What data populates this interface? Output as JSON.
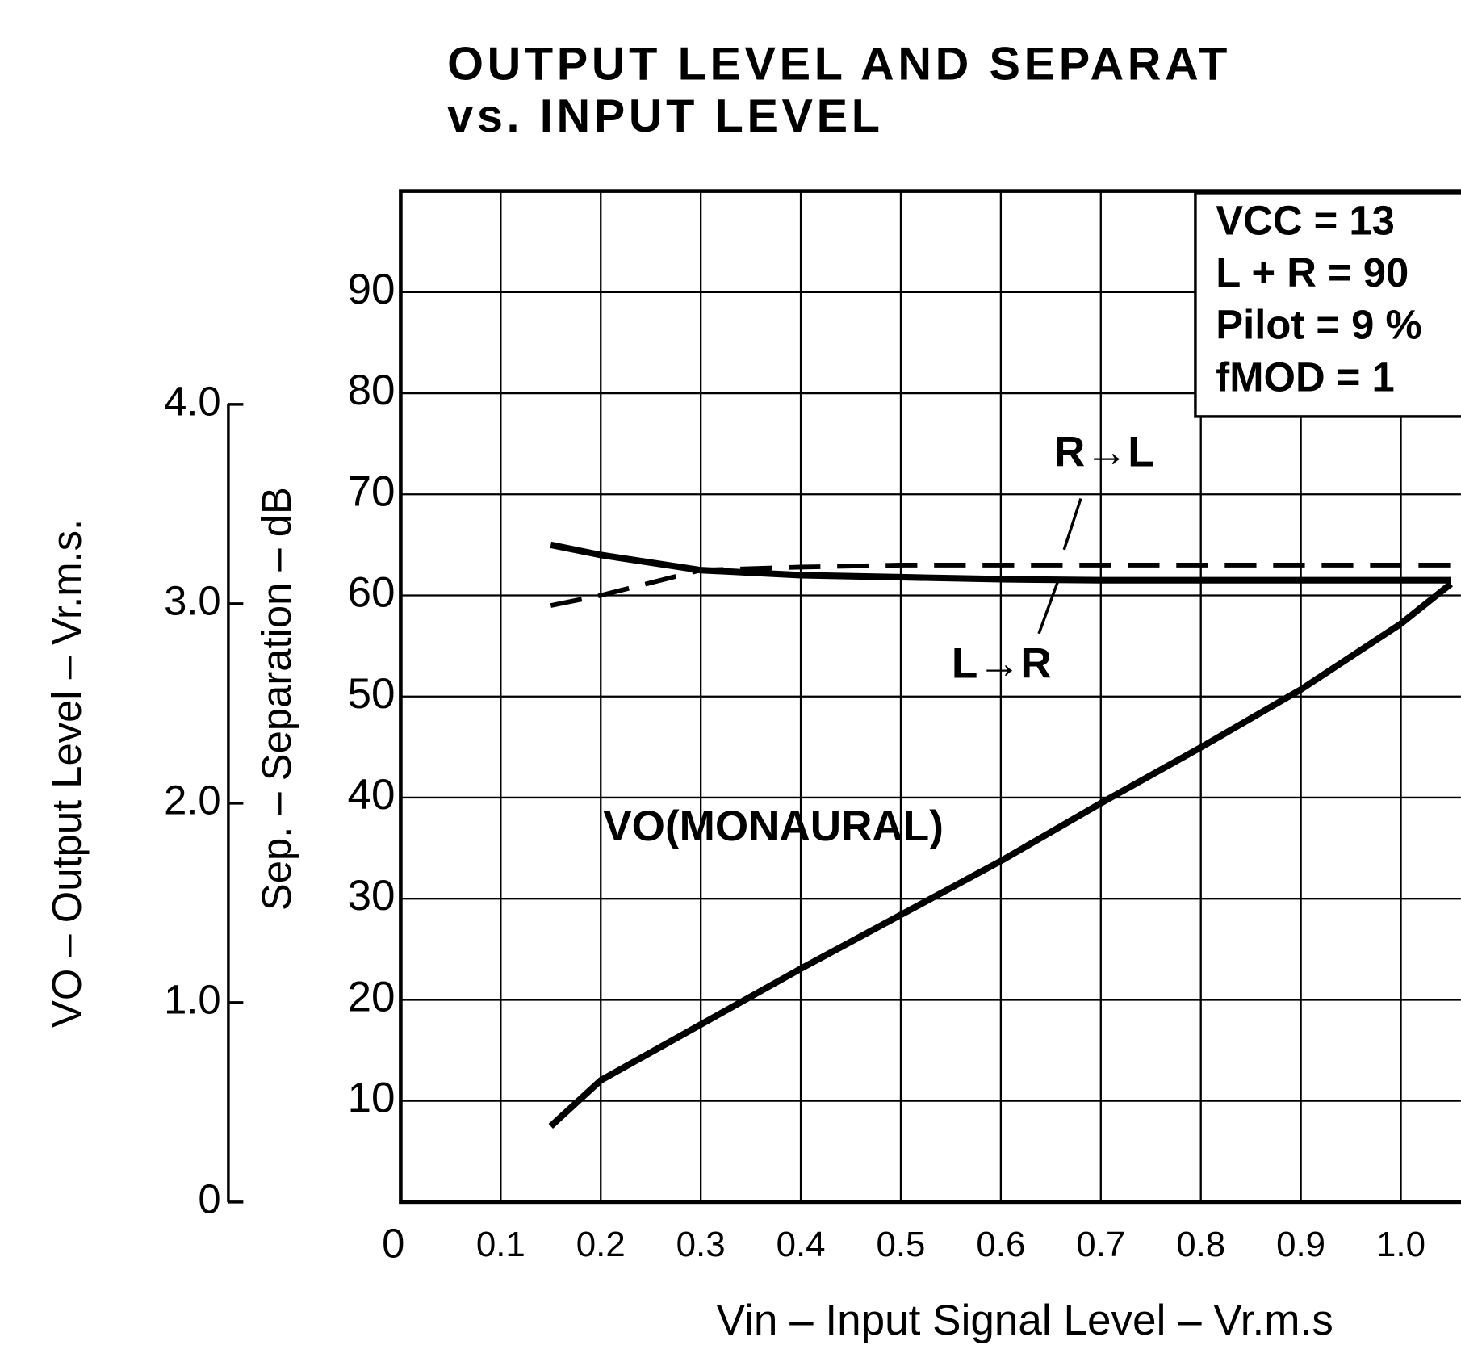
{
  "chart_data": {
    "type": "line",
    "title": [
      "OUTPUT LEVEL AND SEPARAT",
      "vs. INPUT LEVEL"
    ],
    "xlabel": "Vin – Input Signal Level – Vr.m.s",
    "ylabel": "Sep. – Separation – dB",
    "y2label": "VO – Output Level – Vr.m.s.",
    "x": [
      0.15,
      0.2,
      0.3,
      0.4,
      0.5,
      0.6,
      0.7,
      0.8,
      0.9,
      1.0,
      1.05
    ],
    "series": [
      {
        "name": "L→R",
        "color": "#000000",
        "style": "solid",
        "values": [
          65,
          64,
          62.5,
          62,
          61.8,
          61.6,
          61.5,
          61.5,
          61.5,
          61.5,
          61.5
        ]
      },
      {
        "name": "R→L",
        "color": "#000000",
        "style": "dashed",
        "values": [
          59,
          60,
          62.5,
          62.8,
          63,
          63,
          63,
          63,
          63,
          63,
          63
        ]
      },
      {
        "name": "VO(MONAURAL)",
        "color": "#000000",
        "style": "solid",
        "axis": "y2",
        "values": [
          0.38,
          0.61,
          0.89,
          1.17,
          1.44,
          1.71,
          2.0,
          2.28,
          2.57,
          2.9,
          3.1
        ]
      }
    ],
    "annotations": [
      "VCC = 13",
      "L + R = 90",
      "Pilot = 9 %",
      "fMOD = 1"
    ],
    "xlim": [
      0,
      1.06
    ],
    "xticks": [
      0,
      0.1,
      0.2,
      0.3,
      0.4,
      0.5,
      0.6,
      0.7,
      0.8,
      0.9,
      {
        "value": 1,
        "label": "1.0"
      }
    ],
    "ylim": [
      0,
      100
    ],
    "yticks": [
      10,
      20,
      30,
      40,
      50,
      60,
      70,
      80,
      90
    ],
    "y2lim": [
      0,
      5.07
    ],
    "y2ticks": [
      0,
      {
        "value": 1,
        "label": "1.0"
      },
      {
        "value": 2,
        "label": "2.0"
      },
      {
        "value": 3,
        "label": "3.0"
      },
      {
        "value": 4,
        "label": "4.0"
      }
    ],
    "grid": true
  }
}
